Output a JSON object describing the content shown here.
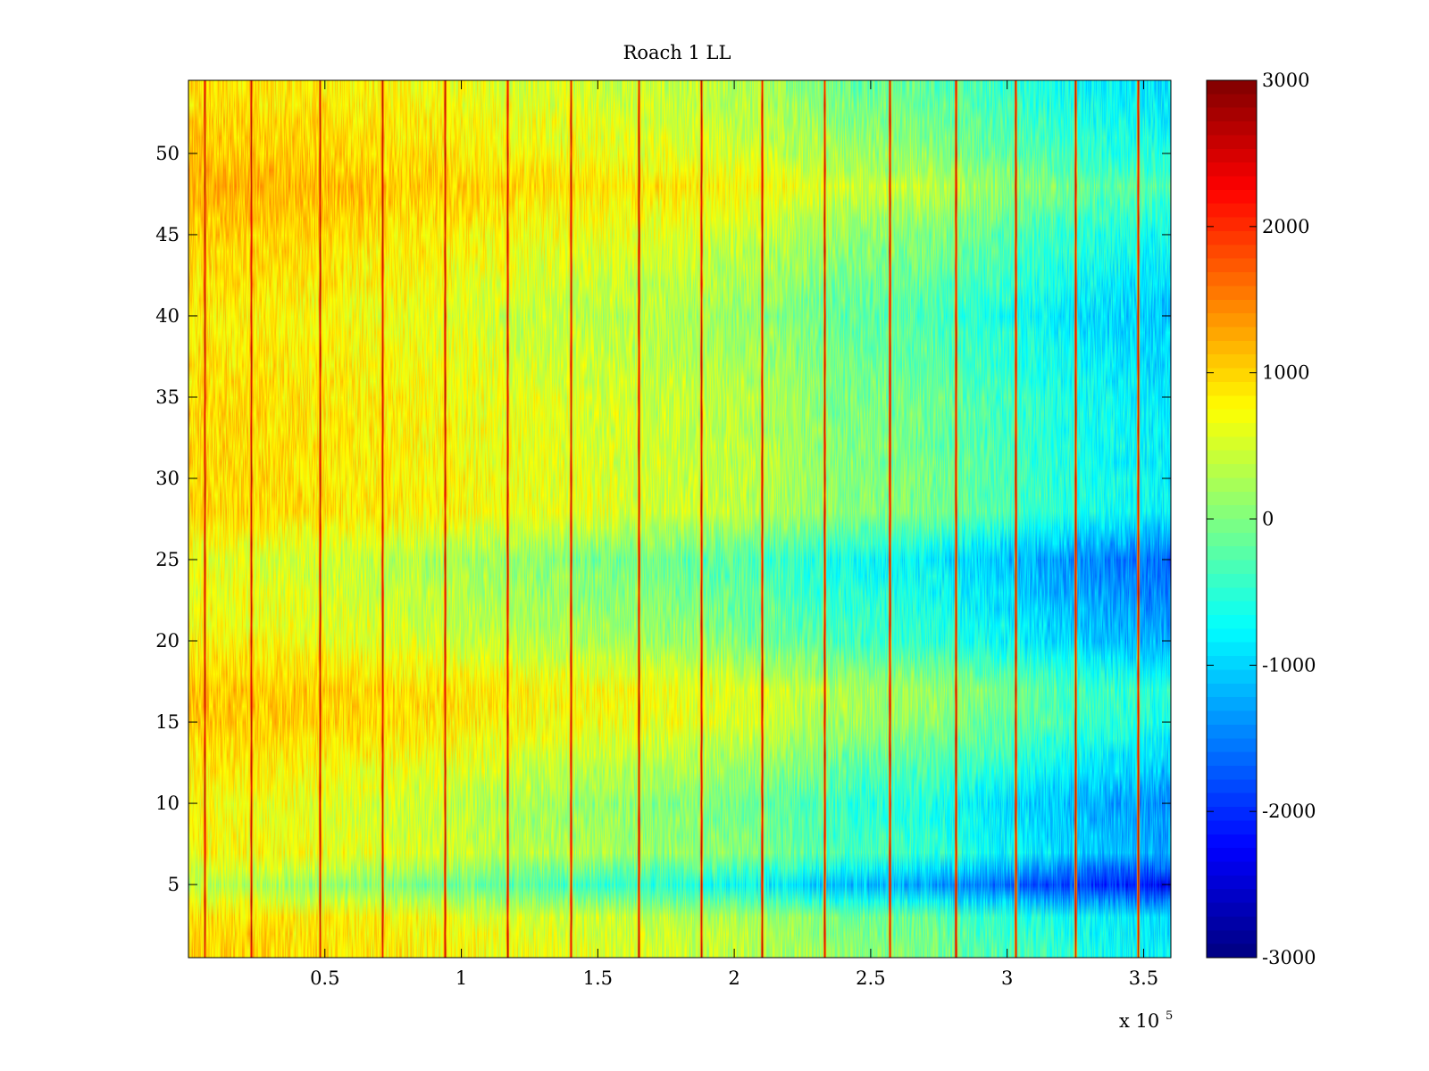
{
  "chart_data": {
    "type": "heatmap",
    "title": "Roach 1 LL",
    "xlabel": "",
    "ylabel": "",
    "x_multiplier_label": "x 10",
    "x_multiplier_exponent": "5",
    "xlim": [
      0,
      3.6
    ],
    "ylim": [
      0.5,
      54.5
    ],
    "x_ticks": [
      0.5,
      1,
      1.5,
      2,
      2.5,
      3,
      3.5
    ],
    "x_tick_labels": [
      "0.5",
      "1",
      "1.5",
      "2",
      "2.5",
      "3",
      "3.5"
    ],
    "y_ticks": [
      5,
      10,
      15,
      20,
      25,
      30,
      35,
      40,
      45,
      50
    ],
    "y_tick_labels": [
      "5",
      "10",
      "15",
      "20",
      "25",
      "30",
      "35",
      "40",
      "45",
      "50"
    ],
    "rows": 54,
    "colormap": "jet",
    "clim": [
      -3000,
      3000
    ],
    "colorbar_ticks": [
      3000,
      2000,
      1000,
      0,
      -1000,
      -2000,
      -3000
    ],
    "colorbar_tick_labels": [
      "3000",
      "2000",
      "1000",
      "0",
      "-1000",
      "-2000",
      "-3000"
    ],
    "spike_positions": [
      0.06,
      0.23,
      0.48,
      0.71,
      0.94,
      1.17,
      1.4,
      1.65,
      1.88,
      2.1,
      2.33,
      2.57,
      2.81,
      3.03,
      3.25,
      3.48
    ],
    "column_profile": {
      "x": [
        0.0,
        0.3,
        0.6,
        0.9,
        1.2,
        1.5,
        1.8,
        2.1,
        2.4,
        2.7,
        3.0,
        3.3,
        3.6
      ],
      "value": [
        850,
        800,
        700,
        600,
        450,
        350,
        250,
        100,
        -200,
        -300,
        -600,
        -900,
        -1100
      ]
    },
    "row_profile": {
      "y": [
        1,
        3,
        5,
        7,
        10,
        15,
        17,
        20,
        25,
        28,
        35,
        40,
        45,
        48,
        50,
        54
      ],
      "value": [
        200,
        100,
        -700,
        -100,
        -200,
        300,
        350,
        -100,
        -350,
        200,
        150,
        0,
        250,
        500,
        300,
        100
      ]
    }
  }
}
